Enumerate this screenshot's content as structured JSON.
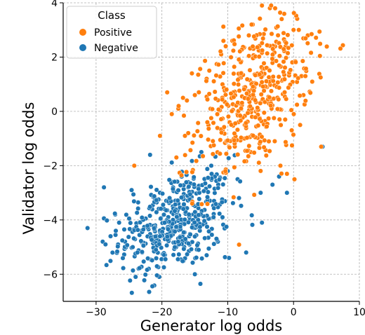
{
  "chart_data": {
    "type": "scatter",
    "title": "",
    "xlabel": "Generator log odds",
    "ylabel": "Validator log odds",
    "xlim": [
      -35,
      10
    ],
    "ylim": [
      -7,
      4
    ],
    "xticks": [
      -30,
      -20,
      -10,
      0,
      10
    ],
    "yticks": [
      -6,
      -4,
      -2,
      0,
      2,
      4
    ],
    "grid": true,
    "legend": {
      "title": "Class",
      "placement": "top-left"
    },
    "series": [
      {
        "name": "Positive",
        "color": "#ff7f0e",
        "center": [
          -6,
          0.6
        ],
        "spread": [
          4.5,
          1.5
        ],
        "correlation": 0.45,
        "count": 450,
        "points": [
          [
            -19.2,
            0.7
          ],
          [
            -20.3,
            -0.9
          ],
          [
            -24.2,
            -2.0
          ],
          [
            -17.5,
            0.1
          ],
          [
            -18.5,
            -0.1
          ],
          [
            -16.2,
            0.4
          ],
          [
            -15.0,
            0.6
          ],
          [
            -13.2,
            1.2
          ],
          [
            -12.8,
            1.5
          ],
          [
            -10.3,
            2.4
          ],
          [
            -11.0,
            2.1
          ],
          [
            -9.3,
            2.6
          ],
          [
            -6.8,
            2.8
          ],
          [
            -6.2,
            3.2
          ],
          [
            -4.8,
            3.9
          ],
          [
            -3.6,
            3.8
          ],
          [
            -1.8,
            3.4
          ],
          [
            0.0,
            3.0
          ],
          [
            0.8,
            3.0
          ],
          [
            -3.4,
            3.9
          ],
          [
            -16.5,
            -0.9
          ],
          [
            -17.8,
            -1.7
          ],
          [
            -16.0,
            -0.8
          ],
          [
            1.2,
            1.3
          ],
          [
            1.8,
            1.3
          ],
          [
            1.5,
            0.6
          ],
          [
            1.0,
            -0.5
          ],
          [
            4.2,
            -1.3
          ],
          [
            -1.0,
            -2.3
          ],
          [
            -2.0,
            -2.0
          ]
        ]
      },
      {
        "name": "Negative",
        "color": "#1f77b4",
        "center": [
          -18,
          -4.1
        ],
        "spread": [
          4.2,
          0.95
        ],
        "correlation": 0.35,
        "count": 450,
        "points": [
          [
            -31.3,
            -4.3
          ],
          [
            -28.8,
            -2.8
          ],
          [
            -27.1,
            -3.8
          ],
          [
            -25.6,
            -4.8
          ],
          [
            -24.0,
            -6.1
          ],
          [
            -20.4,
            -6.1
          ],
          [
            -21.8,
            -1.6
          ],
          [
            -24.6,
            -2.9
          ],
          [
            -23.0,
            -5.2
          ],
          [
            -22.0,
            -5.8
          ],
          [
            -13.2,
            -5.3
          ],
          [
            -9.8,
            -5.4
          ],
          [
            -7.2,
            -5.2
          ],
          [
            -4.8,
            -4.1
          ],
          [
            -2.2,
            -2.4
          ],
          [
            -1.0,
            -3.0
          ],
          [
            -3.2,
            -2.7
          ],
          [
            -5.0,
            -3.0
          ],
          [
            4.4,
            -1.3
          ],
          [
            -8.5,
            -2.5
          ],
          [
            -10.0,
            -2.2
          ],
          [
            -12.5,
            -2.0
          ],
          [
            -14.0,
            -1.5
          ],
          [
            -16.0,
            -2.8
          ],
          [
            -18.5,
            -2.6
          ],
          [
            -26.5,
            -4.1
          ],
          [
            -27.8,
            -4.6
          ],
          [
            -29.0,
            -4.8
          ],
          [
            -15.0,
            -6.0
          ],
          [
            -11.5,
            -4.8
          ]
        ]
      }
    ]
  }
}
